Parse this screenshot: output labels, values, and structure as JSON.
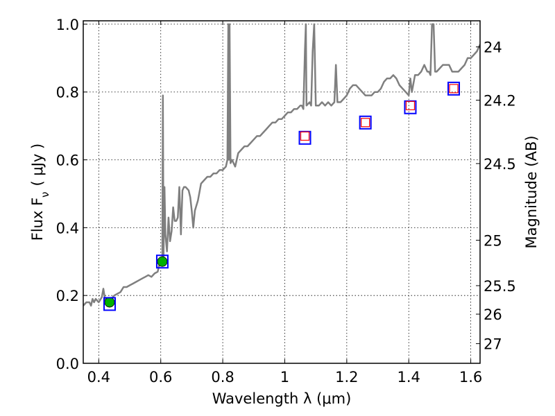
{
  "chart_data": {
    "type": "line",
    "xlabel": "Wavelength  λ (μm)",
    "ylabel": "Flux  F",
    "ylabel_sub": "ν",
    "ylabel_unit": "( μJy )",
    "y2label": "Magnitude (AB)",
    "xlim": [
      0.35,
      1.63
    ],
    "ylim": [
      0.0,
      1.01
    ],
    "grid": true,
    "x_ticks": [
      {
        "value": 0.4,
        "label": "0.4"
      },
      {
        "value": 0.6,
        "label": "0.6"
      },
      {
        "value": 0.8,
        "label": "0.8"
      },
      {
        "value": 1.0,
        "label": "1"
      },
      {
        "value": 1.2,
        "label": "1.2"
      },
      {
        "value": 1.4,
        "label": "1.4"
      },
      {
        "value": 1.6,
        "label": "1.6"
      }
    ],
    "y_ticks": [
      {
        "value": 0.0,
        "label": "0.0"
      },
      {
        "value": 0.2,
        "label": "0.2"
      },
      {
        "value": 0.4,
        "label": "0.4"
      },
      {
        "value": 0.6,
        "label": "0.6"
      },
      {
        "value": 0.8,
        "label": "0.8"
      },
      {
        "value": 1.0,
        "label": "1.0"
      }
    ],
    "y2_ticks": [
      {
        "flux": 0.933,
        "label": "24"
      },
      {
        "flux": 0.776,
        "label": "24.2"
      },
      {
        "flux": 0.589,
        "label": "24.5"
      },
      {
        "flux": 0.363,
        "label": "25"
      },
      {
        "flux": 0.229,
        "label": "25.5"
      },
      {
        "flux": 0.145,
        "label": "26"
      },
      {
        "flux": 0.058,
        "label": "27"
      }
    ],
    "series": [
      {
        "kind": "spectrum",
        "color": "#7f7f7f",
        "points": [
          [
            0.35,
            0.17
          ],
          [
            0.36,
            0.18
          ],
          [
            0.37,
            0.18
          ],
          [
            0.375,
            0.17
          ],
          [
            0.38,
            0.19
          ],
          [
            0.385,
            0.18
          ],
          [
            0.39,
            0.19
          ],
          [
            0.4,
            0.18
          ],
          [
            0.41,
            0.195
          ],
          [
            0.415,
            0.22
          ],
          [
            0.42,
            0.19
          ],
          [
            0.43,
            0.19
          ],
          [
            0.44,
            0.19
          ],
          [
            0.45,
            0.2
          ],
          [
            0.46,
            0.205
          ],
          [
            0.47,
            0.21
          ],
          [
            0.48,
            0.225
          ],
          [
            0.49,
            0.225
          ],
          [
            0.5,
            0.23
          ],
          [
            0.51,
            0.235
          ],
          [
            0.52,
            0.24
          ],
          [
            0.53,
            0.245
          ],
          [
            0.54,
            0.25
          ],
          [
            0.55,
            0.255
          ],
          [
            0.56,
            0.26
          ],
          [
            0.57,
            0.255
          ],
          [
            0.58,
            0.265
          ],
          [
            0.59,
            0.27
          ],
          [
            0.595,
            0.29
          ],
          [
            0.6,
            0.31
          ],
          [
            0.605,
            0.31
          ],
          [
            0.607,
            0.79
          ],
          [
            0.609,
            0.31
          ],
          [
            0.612,
            0.52
          ],
          [
            0.615,
            0.38
          ],
          [
            0.62,
            0.33
          ],
          [
            0.625,
            0.43
          ],
          [
            0.63,
            0.36
          ],
          [
            0.635,
            0.39
          ],
          [
            0.64,
            0.46
          ],
          [
            0.645,
            0.42
          ],
          [
            0.65,
            0.42
          ],
          [
            0.655,
            0.43
          ],
          [
            0.66,
            0.52
          ],
          [
            0.665,
            0.38
          ],
          [
            0.67,
            0.51
          ],
          [
            0.675,
            0.52
          ],
          [
            0.68,
            0.52
          ],
          [
            0.69,
            0.51
          ],
          [
            0.695,
            0.49
          ],
          [
            0.7,
            0.45
          ],
          [
            0.705,
            0.4
          ],
          [
            0.71,
            0.45
          ],
          [
            0.72,
            0.48
          ],
          [
            0.73,
            0.53
          ],
          [
            0.74,
            0.54
          ],
          [
            0.75,
            0.55
          ],
          [
            0.76,
            0.55
          ],
          [
            0.77,
            0.56
          ],
          [
            0.78,
            0.56
          ],
          [
            0.79,
            0.57
          ],
          [
            0.8,
            0.57
          ],
          [
            0.81,
            0.58
          ],
          [
            0.815,
            0.6
          ],
          [
            0.818,
            1.0
          ],
          [
            0.82,
            0.6
          ],
          [
            0.822,
            1.0
          ],
          [
            0.825,
            0.59
          ],
          [
            0.83,
            0.6
          ],
          [
            0.84,
            0.58
          ],
          [
            0.85,
            0.62
          ],
          [
            0.86,
            0.63
          ],
          [
            0.87,
            0.64
          ],
          [
            0.88,
            0.64
          ],
          [
            0.89,
            0.65
          ],
          [
            0.9,
            0.66
          ],
          [
            0.91,
            0.67
          ],
          [
            0.92,
            0.67
          ],
          [
            0.93,
            0.68
          ],
          [
            0.94,
            0.69
          ],
          [
            0.95,
            0.7
          ],
          [
            0.96,
            0.71
          ],
          [
            0.97,
            0.71
          ],
          [
            0.98,
            0.72
          ],
          [
            0.99,
            0.72
          ],
          [
            1.0,
            0.73
          ],
          [
            1.01,
            0.74
          ],
          [
            1.02,
            0.74
          ],
          [
            1.03,
            0.75
          ],
          [
            1.04,
            0.75
          ],
          [
            1.05,
            0.76
          ],
          [
            1.055,
            0.76
          ],
          [
            1.06,
            0.75
          ],
          [
            1.065,
            0.92
          ],
          [
            1.068,
            1.0
          ],
          [
            1.07,
            0.76
          ],
          [
            1.08,
            0.77
          ],
          [
            1.085,
            0.76
          ],
          [
            1.09,
            0.92
          ],
          [
            1.095,
            1.0
          ],
          [
            1.1,
            0.76
          ],
          [
            1.11,
            0.76
          ],
          [
            1.12,
            0.77
          ],
          [
            1.13,
            0.76
          ],
          [
            1.14,
            0.77
          ],
          [
            1.15,
            0.76
          ],
          [
            1.16,
            0.77
          ],
          [
            1.165,
            0.88
          ],
          [
            1.17,
            0.77
          ],
          [
            1.18,
            0.77
          ],
          [
            1.19,
            0.78
          ],
          [
            1.2,
            0.79
          ],
          [
            1.21,
            0.81
          ],
          [
            1.22,
            0.82
          ],
          [
            1.23,
            0.82
          ],
          [
            1.24,
            0.81
          ],
          [
            1.25,
            0.8
          ],
          [
            1.26,
            0.79
          ],
          [
            1.27,
            0.79
          ],
          [
            1.28,
            0.79
          ],
          [
            1.29,
            0.8
          ],
          [
            1.3,
            0.8
          ],
          [
            1.31,
            0.81
          ],
          [
            1.32,
            0.83
          ],
          [
            1.33,
            0.84
          ],
          [
            1.34,
            0.84
          ],
          [
            1.35,
            0.85
          ],
          [
            1.36,
            0.84
          ],
          [
            1.37,
            0.82
          ],
          [
            1.38,
            0.81
          ],
          [
            1.39,
            0.8
          ],
          [
            1.4,
            0.79
          ],
          [
            1.405,
            0.84
          ],
          [
            1.41,
            0.8
          ],
          [
            1.42,
            0.85
          ],
          [
            1.43,
            0.85
          ],
          [
            1.44,
            0.86
          ],
          [
            1.45,
            0.88
          ],
          [
            1.455,
            0.87
          ],
          [
            1.46,
            0.86
          ],
          [
            1.465,
            0.86
          ],
          [
            1.47,
            0.85
          ],
          [
            1.475,
            1.0
          ],
          [
            1.48,
            1.0
          ],
          [
            1.485,
            0.86
          ],
          [
            1.49,
            0.86
          ],
          [
            1.5,
            0.87
          ],
          [
            1.51,
            0.88
          ],
          [
            1.52,
            0.88
          ],
          [
            1.53,
            0.88
          ],
          [
            1.54,
            0.86
          ],
          [
            1.55,
            0.86
          ],
          [
            1.56,
            0.86
          ],
          [
            1.57,
            0.87
          ],
          [
            1.58,
            0.88
          ],
          [
            1.59,
            0.9
          ],
          [
            1.6,
            0.9
          ],
          [
            1.61,
            0.91
          ],
          [
            1.62,
            0.92
          ],
          [
            1.63,
            0.94
          ]
        ]
      },
      {
        "kind": "model_points",
        "marker": "open-square",
        "color": "#0000ff",
        "points": [
          [
            0.435,
            0.175
          ],
          [
            0.605,
            0.3
          ],
          [
            1.065,
            0.665
          ],
          [
            1.26,
            0.71
          ],
          [
            1.405,
            0.755
          ],
          [
            1.545,
            0.81
          ]
        ]
      },
      {
        "kind": "upper_limit_points",
        "marker": "open-square",
        "color": "#ff0000",
        "points": [
          [
            1.065,
            0.67
          ],
          [
            1.26,
            0.71
          ],
          [
            1.405,
            0.76
          ],
          [
            1.545,
            0.81
          ]
        ]
      },
      {
        "kind": "detections",
        "marker": "filled-circle",
        "color": "#00b000",
        "points": [
          {
            "x": 0.435,
            "y": 0.18,
            "err": 0.015
          },
          {
            "x": 0.605,
            "y": 0.3,
            "err": 0.015
          }
        ]
      }
    ]
  }
}
